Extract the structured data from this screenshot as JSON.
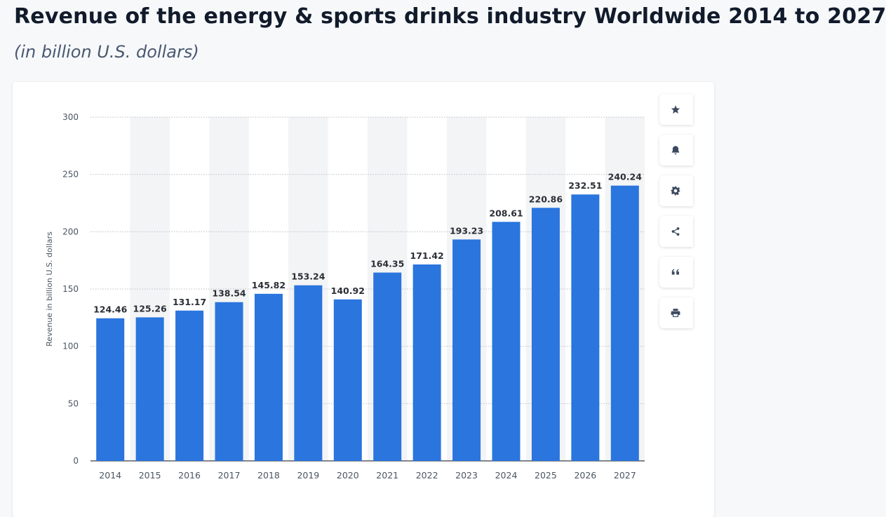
{
  "page": {
    "title": "Revenue of the energy & sports drinks industry Worldwide 2014 to 2027",
    "subtitle": "(in billion U.S. dollars)"
  },
  "toolbar": {
    "icons": [
      "star-icon",
      "bell-icon",
      "gear-icon",
      "share-icon",
      "quote-icon",
      "print-icon"
    ]
  },
  "colors": {
    "bar": "#2a75de",
    "band": "#f3f4f6",
    "grid": "#b9bec6",
    "axis_text": "#4a5562",
    "label_text": "#2b2f36"
  },
  "chart_data": {
    "type": "bar",
    "ylabel": "Revenue in billion U.S. dollars",
    "xlabel": "",
    "ylim": [
      0,
      300
    ],
    "yticks": [
      0,
      50,
      100,
      150,
      200,
      250,
      300
    ],
    "grid": true,
    "categories": [
      "2014",
      "2015",
      "2016",
      "2017",
      "2018",
      "2019",
      "2020",
      "2021",
      "2022",
      "2023",
      "2024",
      "2025",
      "2026",
      "2027"
    ],
    "values": [
      124.46,
      125.26,
      131.17,
      138.54,
      145.82,
      153.24,
      140.92,
      164.35,
      171.42,
      193.23,
      208.61,
      220.86,
      232.51,
      240.24
    ],
    "value_labels": [
      "124.46",
      "125.26",
      "131.17",
      "138.54",
      "145.82",
      "153.24",
      "140.92",
      "164.35",
      "171.42",
      "193.23",
      "208.61",
      "220.86",
      "232.51",
      "240.24"
    ]
  }
}
